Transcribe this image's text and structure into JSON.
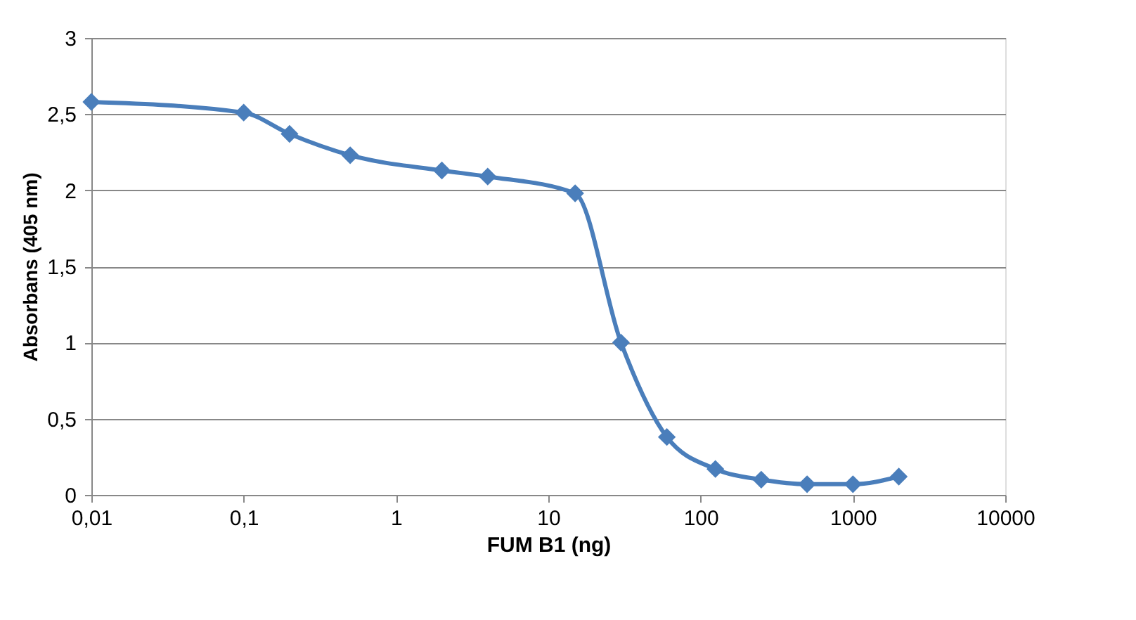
{
  "chart_data": {
    "type": "line",
    "xlabel": "FUM B1 (ng)",
    "ylabel": "Absorbans (405 nm)",
    "x": [
      0.01,
      0.1,
      0.2,
      0.5,
      2,
      4,
      15,
      30,
      60,
      125,
      250,
      500,
      1000,
      2000
    ],
    "series": [
      {
        "color": "#4a7ebb",
        "values": [
          2.58,
          2.51,
          2.37,
          2.23,
          2.13,
          2.09,
          1.98,
          1.0,
          0.38,
          0.17,
          0.1,
          0.07,
          0.07,
          0.12
        ]
      }
    ],
    "log": "x",
    "xlim": [
      0.01,
      10000
    ],
    "xticks": [
      {
        "value": 0.01,
        "label": "0,01"
      },
      {
        "value": 0.1,
        "label": "0,1"
      },
      1,
      10,
      100,
      1000,
      10000
    ],
    "ylim": [
      0,
      3
    ],
    "yticks": [
      0,
      {
        "value": 0.5,
        "label": "0,5"
      },
      1,
      {
        "value": 1.5,
        "label": "1,5"
      },
      2,
      {
        "value": 2.5,
        "label": "2,5"
      },
      3
    ],
    "grid": "y",
    "marker": "diamond",
    "line_style": "solid"
  }
}
